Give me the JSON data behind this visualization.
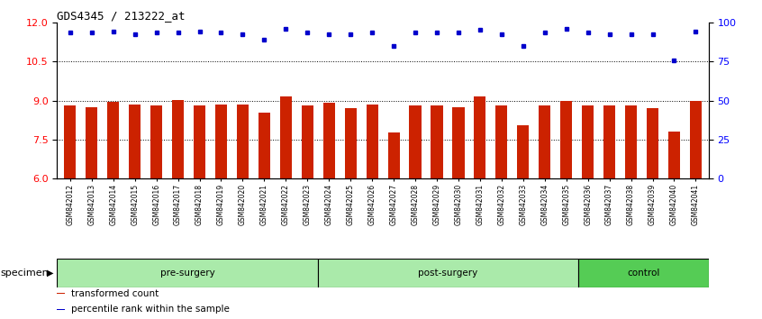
{
  "title": "GDS4345 / 213222_at",
  "samples": [
    "GSM842012",
    "GSM842013",
    "GSM842014",
    "GSM842015",
    "GSM842016",
    "GSM842017",
    "GSM842018",
    "GSM842019",
    "GSM842020",
    "GSM842021",
    "GSM842022",
    "GSM842023",
    "GSM842024",
    "GSM842025",
    "GSM842026",
    "GSM842027",
    "GSM842028",
    "GSM842029",
    "GSM842030",
    "GSM842031",
    "GSM842032",
    "GSM842033",
    "GSM842034",
    "GSM842035",
    "GSM842036",
    "GSM842037",
    "GSM842038",
    "GSM842039",
    "GSM842040",
    "GSM842041"
  ],
  "bar_values": [
    8.82,
    8.75,
    8.95,
    8.85,
    8.82,
    9.02,
    8.82,
    8.85,
    8.85,
    8.55,
    9.15,
    8.82,
    8.9,
    8.72,
    8.85,
    7.78,
    8.82,
    8.82,
    8.75,
    9.15,
    8.82,
    8.05,
    8.82,
    9.0,
    8.82,
    8.82,
    8.82,
    8.72,
    7.82,
    9.0
  ],
  "percentile_values": [
    11.62,
    11.6,
    11.65,
    11.55,
    11.6,
    11.6,
    11.65,
    11.62,
    11.55,
    11.35,
    11.75,
    11.6,
    11.55,
    11.55,
    11.6,
    11.1,
    11.6,
    11.6,
    11.6,
    11.72,
    11.55,
    11.1,
    11.62,
    11.75,
    11.6,
    11.55,
    11.55,
    11.55,
    10.55,
    11.65
  ],
  "groups": [
    {
      "label": "pre-surgery",
      "start": 0,
      "end": 12,
      "color": "#aaeaaa"
    },
    {
      "label": "post-surgery",
      "start": 12,
      "end": 24,
      "color": "#aaeaaa"
    },
    {
      "label": "control",
      "start": 24,
      "end": 30,
      "color": "#55cc55"
    }
  ],
  "bar_color": "#CC2200",
  "dot_color": "#0000CC",
  "ylim_left": [
    6,
    12
  ],
  "ylim_right": [
    0,
    100
  ],
  "yticks_left": [
    6,
    7.5,
    9,
    10.5,
    12
  ],
  "yticks_right": [
    0,
    25,
    50,
    75,
    100
  ],
  "dotted_lines": [
    7.5,
    9.0,
    10.5
  ],
  "legend_items": [
    {
      "label": "transformed count",
      "color": "#CC2200"
    },
    {
      "label": "percentile rank within the sample",
      "color": "#0000CC"
    }
  ]
}
